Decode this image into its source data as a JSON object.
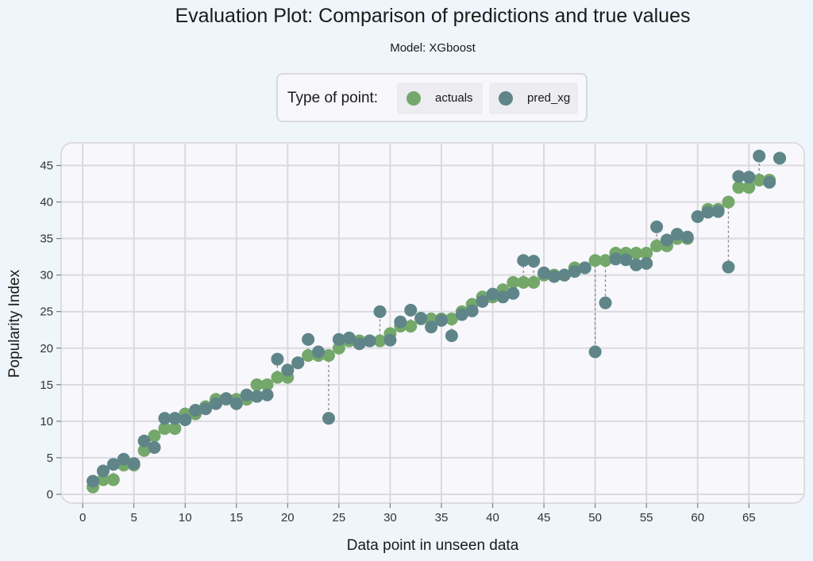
{
  "chart_data": {
    "type": "scatter",
    "title": "Evaluation Plot:  Comparison of predictions and true values",
    "subtitle": "Model:  XGboost",
    "xlabel": "Data point in unseen data",
    "ylabel": "Popularity Index",
    "xlim": [
      -2.1,
      70.4
    ],
    "ylim": [
      -1.2,
      48.1
    ],
    "xticks": [
      0,
      5,
      10,
      15,
      20,
      25,
      30,
      35,
      40,
      45,
      50,
      55,
      60,
      65
    ],
    "yticks": [
      0,
      5,
      10,
      15,
      20,
      25,
      30,
      35,
      40,
      45
    ],
    "grid": true,
    "legend_title": "Type of point:",
    "legend_position": "top-center",
    "x": [
      1,
      2,
      3,
      4,
      5,
      6,
      7,
      8,
      9,
      10,
      11,
      12,
      13,
      14,
      15,
      16,
      17,
      18,
      19,
      20,
      21,
      22,
      23,
      24,
      25,
      26,
      27,
      28,
      29,
      30,
      31,
      32,
      33,
      34,
      35,
      36,
      37,
      38,
      39,
      40,
      41,
      42,
      43,
      44,
      45,
      46,
      47,
      48,
      49,
      50,
      51,
      52,
      53,
      54,
      55,
      56,
      57,
      58,
      59,
      60,
      61,
      62,
      63,
      64,
      65,
      66,
      67,
      68
    ],
    "series": [
      {
        "name": "actuals",
        "color": "#74a86a",
        "values": [
          1,
          2,
          2,
          4,
          4,
          6,
          8,
          9,
          9,
          11,
          11,
          12,
          13,
          13,
          13,
          13,
          15,
          15,
          16,
          16,
          18,
          19,
          19,
          19,
          20,
          21,
          21,
          21,
          21,
          22,
          23,
          23,
          24,
          24,
          24,
          24,
          25,
          26,
          27,
          27,
          28,
          29,
          29,
          29,
          30,
          30,
          30,
          31,
          31,
          32,
          32,
          33,
          33,
          33,
          33,
          34,
          34,
          35,
          35,
          38,
          39,
          39,
          40,
          42,
          42,
          43,
          43,
          46
        ]
      },
      {
        "name": "pred_xg",
        "color": "#5f8589",
        "values": [
          1.8,
          3.2,
          4.1,
          4.8,
          4.2,
          7.3,
          6.4,
          10.4,
          10.4,
          10.2,
          11.5,
          11.7,
          12.4,
          13.1,
          12.4,
          13.6,
          13.4,
          13.6,
          18.5,
          17.0,
          18.0,
          21.2,
          19.5,
          10.4,
          21.2,
          21.4,
          20.6,
          21.0,
          25.0,
          21.1,
          23.6,
          25.2,
          24.1,
          22.9,
          23.8,
          21.7,
          24.6,
          25.1,
          26.4,
          27.4,
          27.0,
          27.5,
          32.0,
          31.9,
          30.3,
          29.8,
          30.0,
          30.5,
          31.0,
          19.5,
          26.2,
          32.2,
          32.1,
          31.4,
          31.6,
          36.6,
          34.8,
          35.6,
          35.2,
          38.0,
          38.6,
          38.7,
          31.1,
          43.5,
          43.4,
          46.3,
          42.7,
          46.0
        ]
      }
    ]
  }
}
